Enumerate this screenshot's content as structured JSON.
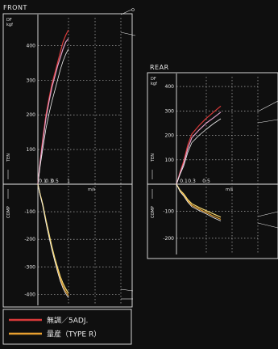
{
  "chart_data": [
    {
      "type": "line",
      "title": "FRONT",
      "y_unit_line1": "DF",
      "y_unit_line2": "kgf",
      "ylabel_top": "TEN",
      "ylabel_bottom": "COMP",
      "x_tick_labels": [
        "0.1",
        "0.3",
        "0.5",
        "1"
      ],
      "x_unit": "m/s",
      "y_ticks": [
        400,
        300,
        200,
        100,
        -100,
        -200,
        -300,
        -400
      ],
      "ylim": [
        -440,
        480
      ],
      "xlim": [
        0,
        1.3
      ],
      "grid": true,
      "series": [
        {
          "color": "#d93a3a",
          "end_label": "",
          "x": [
            0,
            0.05,
            0.1,
            0.2,
            0.3,
            0.4,
            0.5,
            0.6,
            0.7,
            0.8,
            0.9,
            1.0
          ],
          "y": [
            0,
            70,
            130,
            200,
            250,
            290,
            320,
            350,
            380,
            410,
            430,
            445
          ]
        },
        {
          "color": "#e0a0c8",
          "end_label": "",
          "x": [
            0,
            0.05,
            0.1,
            0.2,
            0.3,
            0.4,
            0.5,
            0.6,
            0.7,
            0.8,
            0.9,
            1.0
          ],
          "y": [
            0,
            65,
            120,
            190,
            240,
            280,
            310,
            340,
            365,
            390,
            410,
            420
          ]
        },
        {
          "color": "#f0f0f0",
          "end_label": "",
          "x": [
            0,
            0.05,
            0.1,
            0.2,
            0.3,
            0.4,
            0.5,
            0.6,
            0.7,
            0.8,
            0.9,
            1.0
          ],
          "y": [
            0,
            55,
            100,
            160,
            205,
            240,
            270,
            300,
            330,
            355,
            375,
            390
          ]
        },
        {
          "color": "#e8a030",
          "end_label": "",
          "x": [
            0,
            0.05,
            0.1,
            0.2,
            0.3,
            0.4,
            0.5,
            0.6,
            0.7,
            0.8,
            0.9,
            1.0
          ],
          "y": [
            0,
            -40,
            -75,
            -135,
            -190,
            -235,
            -275,
            -310,
            -345,
            -370,
            -390,
            -405
          ]
        },
        {
          "color": "#f5d870",
          "end_label": "",
          "x": [
            0,
            0.05,
            0.1,
            0.2,
            0.3,
            0.4,
            0.5,
            0.6,
            0.7,
            0.8,
            0.9,
            1.0
          ],
          "y": [
            0,
            -38,
            -72,
            -130,
            -182,
            -228,
            -268,
            -302,
            -335,
            -360,
            -380,
            -396
          ]
        },
        {
          "color": "#f0f0f0",
          "end_label": "",
          "x": [
            0,
            0.05,
            0.1,
            0.2,
            0.3,
            0.4,
            0.5,
            0.6,
            0.7,
            0.8,
            0.9,
            1.0
          ],
          "y": [
            0,
            -42,
            -78,
            -140,
            -195,
            -240,
            -280,
            -318,
            -352,
            -378,
            -398,
            -412
          ]
        }
      ]
    },
    {
      "type": "line",
      "title": "REAR",
      "y_unit_line1": "DF",
      "y_unit_line2": "kgf",
      "ylabel_top": "TEN",
      "ylabel_bottom": "COMP",
      "x_tick_labels": [
        "0.1",
        "0.3",
        "0.5"
      ],
      "x_unit": "m/s",
      "y_ticks": [
        400,
        300,
        200,
        100,
        -100,
        -200
      ],
      "ylim": [
        -260,
        440
      ],
      "xlim": [
        0,
        0.75
      ],
      "grid": true,
      "series": [
        {
          "color": "#d93a3a",
          "end_label": "",
          "x": [
            0,
            0.05,
            0.1,
            0.2,
            0.3,
            0.4,
            0.5,
            0.6,
            0.7
          ],
          "y": [
            0,
            50,
            95,
            160,
            205,
            240,
            270,
            295,
            320
          ]
        },
        {
          "color": "#e0a0c8",
          "end_label": "",
          "x": [
            0,
            0.05,
            0.1,
            0.2,
            0.3,
            0.4,
            0.5,
            0.6,
            0.7
          ],
          "y": [
            0,
            45,
            85,
            145,
            190,
            222,
            250,
            272,
            295
          ]
        },
        {
          "color": "#f0f0f0",
          "end_label": "",
          "x": [
            0,
            0.05,
            0.1,
            0.2,
            0.3,
            0.4,
            0.5,
            0.6,
            0.7
          ],
          "y": [
            0,
            40,
            75,
            130,
            170,
            200,
            225,
            248,
            268
          ]
        },
        {
          "color": "#e8a030",
          "end_label": "",
          "x": [
            0,
            0.05,
            0.1,
            0.2,
            0.3,
            0.4,
            0.5,
            0.6,
            0.7
          ],
          "y": [
            0,
            -25,
            -40,
            -62,
            -78,
            -92,
            -105,
            -118,
            -130
          ]
        },
        {
          "color": "#f5d870",
          "end_label": "",
          "x": [
            0,
            0.05,
            0.1,
            0.2,
            0.3,
            0.4,
            0.5,
            0.6,
            0.7
          ],
          "y": [
            0,
            -22,
            -36,
            -57,
            -72,
            -86,
            -98,
            -110,
            -122
          ]
        },
        {
          "color": "#f0f0f0",
          "end_label": "",
          "x": [
            0,
            0.05,
            0.1,
            0.2,
            0.3,
            0.4,
            0.5,
            0.6,
            0.7
          ],
          "y": [
            0,
            -28,
            -44,
            -66,
            -83,
            -97,
            -110,
            -124,
            -136
          ]
        }
      ]
    }
  ],
  "legend": [
    {
      "label": "無調／5ADJ.",
      "color": "#d93a3a"
    },
    {
      "label": "量産（TYPE R）",
      "color": "#e8a030"
    }
  ]
}
